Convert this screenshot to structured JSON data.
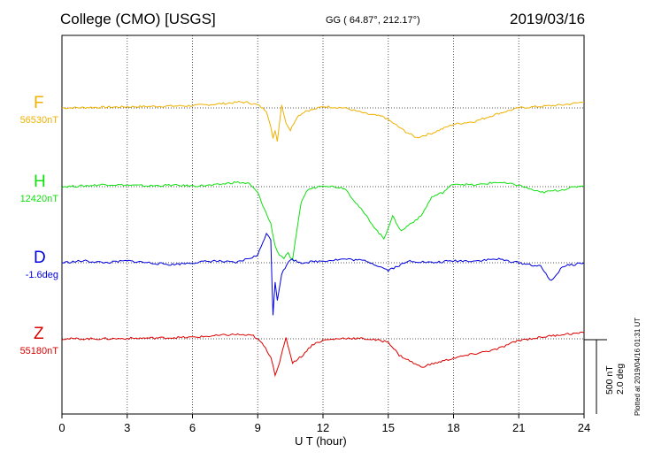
{
  "header": {
    "title": "College (CMO)  [USGS]",
    "coords": "GG ( 64.87°, 212.17°)",
    "date": "2019/03/16"
  },
  "colors": {
    "F": "#f0b000",
    "H": "#10e010",
    "D": "#0000dd",
    "Z": "#dd0000"
  },
  "footer": {
    "scale_nt": "500 nT",
    "scale_deg": "2.0 deg",
    "plotted": "Plotted at 2019/04/16 01:31 UT"
  },
  "chart_data": {
    "type": "line",
    "xlabel": "U T (hour)",
    "xlim": [
      0,
      24
    ],
    "xticks": [
      0,
      3,
      6,
      9,
      12,
      15,
      18,
      21,
      24
    ],
    "grid": true,
    "series": [
      {
        "name": "F",
        "baseline_label": "56530nT",
        "points": [
          [
            0,
            0
          ],
          [
            2,
            5
          ],
          [
            4,
            10
          ],
          [
            6,
            15
          ],
          [
            7.5,
            30
          ],
          [
            8.2,
            40
          ],
          [
            8.6,
            35
          ],
          [
            9,
            20
          ],
          [
            9.4,
            -20
          ],
          [
            9.6,
            -120
          ],
          [
            9.7,
            -210
          ],
          [
            9.8,
            -150
          ],
          [
            9.9,
            -220
          ],
          [
            10.1,
            20
          ],
          [
            10.3,
            -100
          ],
          [
            10.5,
            -150
          ],
          [
            10.8,
            -60
          ],
          [
            11.2,
            -20
          ],
          [
            11.6,
            -10
          ],
          [
            12,
            10
          ],
          [
            13,
            0
          ],
          [
            14,
            -40
          ],
          [
            14.8,
            -60
          ],
          [
            15.3,
            -110
          ],
          [
            15.8,
            -160
          ],
          [
            16.3,
            -200
          ],
          [
            17,
            -170
          ],
          [
            18,
            -110
          ],
          [
            19,
            -90
          ],
          [
            20,
            -40
          ],
          [
            21,
            0
          ],
          [
            22,
            10
          ],
          [
            23,
            20
          ],
          [
            24,
            40
          ]
        ]
      },
      {
        "name": "H",
        "baseline_label": "12420nT",
        "points": [
          [
            0,
            0
          ],
          [
            1,
            5
          ],
          [
            2,
            15
          ],
          [
            3,
            10
          ],
          [
            4,
            5
          ],
          [
            5,
            10
          ],
          [
            6,
            5
          ],
          [
            7,
            10
          ],
          [
            8,
            30
          ],
          [
            8.6,
            20
          ],
          [
            9,
            -40
          ],
          [
            9.3,
            -150
          ],
          [
            9.6,
            -250
          ],
          [
            9.8,
            -400
          ],
          [
            10,
            -460
          ],
          [
            10.2,
            -480
          ],
          [
            10.4,
            -450
          ],
          [
            10.6,
            -500
          ],
          [
            10.8,
            -300
          ],
          [
            11,
            -100
          ],
          [
            11.3,
            -20
          ],
          [
            12,
            10
          ],
          [
            13,
            -10
          ],
          [
            14,
            -200
          ],
          [
            14.5,
            -300
          ],
          [
            14.8,
            -350
          ],
          [
            15.2,
            -200
          ],
          [
            15.6,
            -300
          ],
          [
            16,
            -250
          ],
          [
            16.5,
            -200
          ],
          [
            17,
            -70
          ],
          [
            17.5,
            -40
          ],
          [
            18,
            20
          ],
          [
            19,
            10
          ],
          [
            20,
            30
          ],
          [
            21,
            10
          ],
          [
            22,
            -40
          ],
          [
            23,
            -20
          ],
          [
            24,
            10
          ]
        ]
      },
      {
        "name": "D",
        "baseline_label": "-1.6deg",
        "points": [
          [
            0,
            0
          ],
          [
            1,
            0.05
          ],
          [
            2,
            0
          ],
          [
            3,
            0.05
          ],
          [
            4,
            0
          ],
          [
            5,
            -0.05
          ],
          [
            6,
            0
          ],
          [
            7,
            0.05
          ],
          [
            8,
            0
          ],
          [
            8.5,
            0.1
          ],
          [
            9,
            0.2
          ],
          [
            9.4,
            0.8
          ],
          [
            9.6,
            0.6
          ],
          [
            9.7,
            -1.4
          ],
          [
            9.8,
            -0.5
          ],
          [
            9.9,
            -1.0
          ],
          [
            10.1,
            -0.3
          ],
          [
            10.5,
            0.1
          ],
          [
            11,
            0
          ],
          [
            12,
            0.05
          ],
          [
            13,
            0.1
          ],
          [
            14,
            0.05
          ],
          [
            15,
            -0.2
          ],
          [
            16,
            0.05
          ],
          [
            17,
            0
          ],
          [
            18,
            0.05
          ],
          [
            19,
            0.05
          ],
          [
            20,
            0.1
          ],
          [
            21,
            0
          ],
          [
            22,
            -0.1
          ],
          [
            22.5,
            -0.5
          ],
          [
            23,
            -0.1
          ],
          [
            24,
            0
          ]
        ]
      },
      {
        "name": "Z",
        "baseline_label": "55180nT",
        "points": [
          [
            0,
            0
          ],
          [
            2,
            0
          ],
          [
            4,
            5
          ],
          [
            6,
            10
          ],
          [
            7,
            20
          ],
          [
            8,
            30
          ],
          [
            8.8,
            20
          ],
          [
            9.2,
            -30
          ],
          [
            9.6,
            -120
          ],
          [
            9.8,
            -240
          ],
          [
            10,
            -160
          ],
          [
            10.3,
            5
          ],
          [
            10.6,
            -160
          ],
          [
            11,
            -120
          ],
          [
            11.5,
            -40
          ],
          [
            12,
            -10
          ],
          [
            13,
            5
          ],
          [
            14,
            0
          ],
          [
            15,
            -20
          ],
          [
            15.5,
            -110
          ],
          [
            16.5,
            -190
          ],
          [
            17,
            -170
          ],
          [
            18,
            -130
          ],
          [
            19,
            -100
          ],
          [
            20,
            -70
          ],
          [
            21,
            -10
          ],
          [
            22,
            10
          ],
          [
            23,
            30
          ],
          [
            24,
            40
          ]
        ]
      }
    ]
  }
}
